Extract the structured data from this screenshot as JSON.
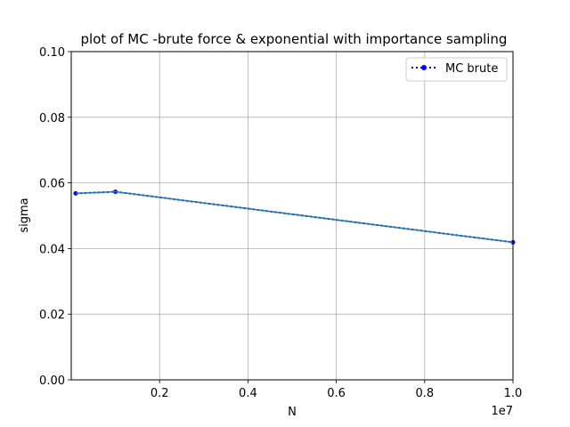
{
  "chart_data": {
    "type": "line",
    "title": "plot of MC -brute force & exponential with importance sampling",
    "xlabel": "N",
    "ylabel": "sigma",
    "x_offset_label": "1e7",
    "xlim": [
      0,
      10000000
    ],
    "ylim": [
      0,
      0.1
    ],
    "xticks": [
      2000000,
      4000000,
      6000000,
      8000000,
      10000000
    ],
    "xtick_labels": [
      "0.2",
      "0.4",
      "0.6",
      "0.8",
      "1.0"
    ],
    "yticks": [
      0,
      0.02,
      0.04,
      0.06,
      0.08,
      0.1
    ],
    "ytick_labels": [
      "0.00",
      "0.02",
      "0.04",
      "0.06",
      "0.08",
      "0.10"
    ],
    "grid": true,
    "legend_position": "top-right",
    "series": [
      {
        "name": "MC brute",
        "color": "#0000ff",
        "style": "dotted-with-markers",
        "x": [
          100000,
          1000000,
          10000000
        ],
        "y": [
          0.0568,
          0.0573,
          0.0419
        ]
      },
      {
        "color": "#1f77b4",
        "style": "solid",
        "x": [
          100000,
          1000000,
          10000000
        ],
        "y": [
          0.0568,
          0.0573,
          0.0419
        ]
      }
    ]
  }
}
